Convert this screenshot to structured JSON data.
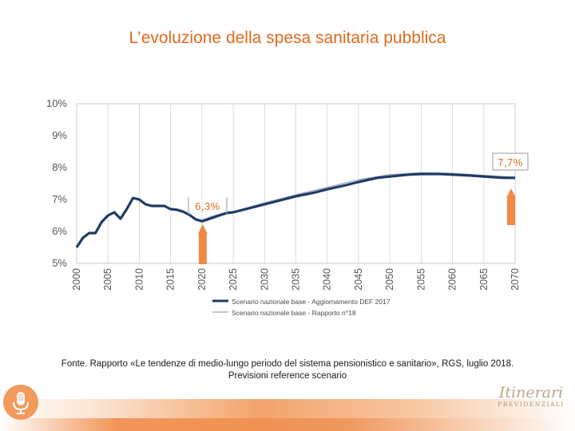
{
  "slide": {
    "title": "L’evoluzione della spesa sanitaria pubblica",
    "source_line1": "Fonte. Rapporto «Le tendenze di medio-lungo periodo del sistema pensionistico e sanitario», RGS, luglio 2018.",
    "source_line2": "Previsioni reference scenario"
  },
  "logo": {
    "script": "Itinerari",
    "caps": "PREVIDENZIALI",
    "icon": "microphone-icon"
  },
  "colors": {
    "accent": "#e06a1e",
    "arrow": "#ee8a45",
    "series_main": "#1f3b66",
    "series_secondary": "#9aa6b8"
  },
  "chart_data": {
    "type": "line",
    "ylim": [
      5,
      10
    ],
    "xlim": [
      2000,
      2070
    ],
    "yticks": [
      5,
      6,
      7,
      8,
      9,
      10
    ],
    "ytick_labels": [
      "5%",
      "6%",
      "7%",
      "8%",
      "9%",
      "10%"
    ],
    "xticks": [
      2000,
      2005,
      2010,
      2015,
      2020,
      2025,
      2030,
      2035,
      2040,
      2045,
      2050,
      2055,
      2060,
      2065,
      2070
    ],
    "xtick_labels": [
      "2000",
      "2005",
      "2010",
      "2015",
      "2020",
      "2025",
      "2030",
      "2035",
      "2040",
      "2045",
      "2050",
      "2055",
      "2060",
      "2065",
      "2070"
    ],
    "grid": "vertical",
    "series": [
      {
        "name": "Scenario nazionale base - Aggiornamento DEF 2017",
        "x": [
          2000,
          2001,
          2002,
          2003,
          2004,
          2005,
          2006,
          2007,
          2008,
          2009,
          2010,
          2011,
          2012,
          2013,
          2014,
          2015,
          2016,
          2017,
          2018,
          2019,
          2020,
          2021,
          2022,
          2023,
          2024,
          2025,
          2027,
          2030,
          2033,
          2035,
          2038,
          2040,
          2043,
          2045,
          2048,
          2050,
          2053,
          2055,
          2058,
          2060,
          2063,
          2065,
          2068,
          2070
        ],
        "y": [
          5.5,
          5.8,
          5.95,
          5.95,
          6.3,
          6.5,
          6.6,
          6.4,
          6.7,
          7.05,
          7.0,
          6.85,
          6.8,
          6.8,
          6.8,
          6.7,
          6.68,
          6.62,
          6.52,
          6.38,
          6.32,
          6.38,
          6.45,
          6.52,
          6.58,
          6.6,
          6.7,
          6.85,
          7.0,
          7.1,
          7.22,
          7.32,
          7.45,
          7.55,
          7.68,
          7.72,
          7.78,
          7.8,
          7.8,
          7.78,
          7.75,
          7.72,
          7.68,
          7.68
        ]
      },
      {
        "name": "Scenario nazionale base - Rapporto n°18",
        "x": [
          2020,
          2022,
          2025,
          2030,
          2035,
          2040,
          2045,
          2050,
          2055,
          2060,
          2065,
          2070
        ],
        "y": [
          6.36,
          6.5,
          6.62,
          6.9,
          7.15,
          7.38,
          7.62,
          7.78,
          7.84,
          7.82,
          7.76,
          7.7
        ]
      }
    ],
    "annotations": [
      {
        "label": "6,3%",
        "x": 2020
      },
      {
        "label": "7,7%",
        "x": 2070
      }
    ],
    "legend_position": "bottom"
  }
}
